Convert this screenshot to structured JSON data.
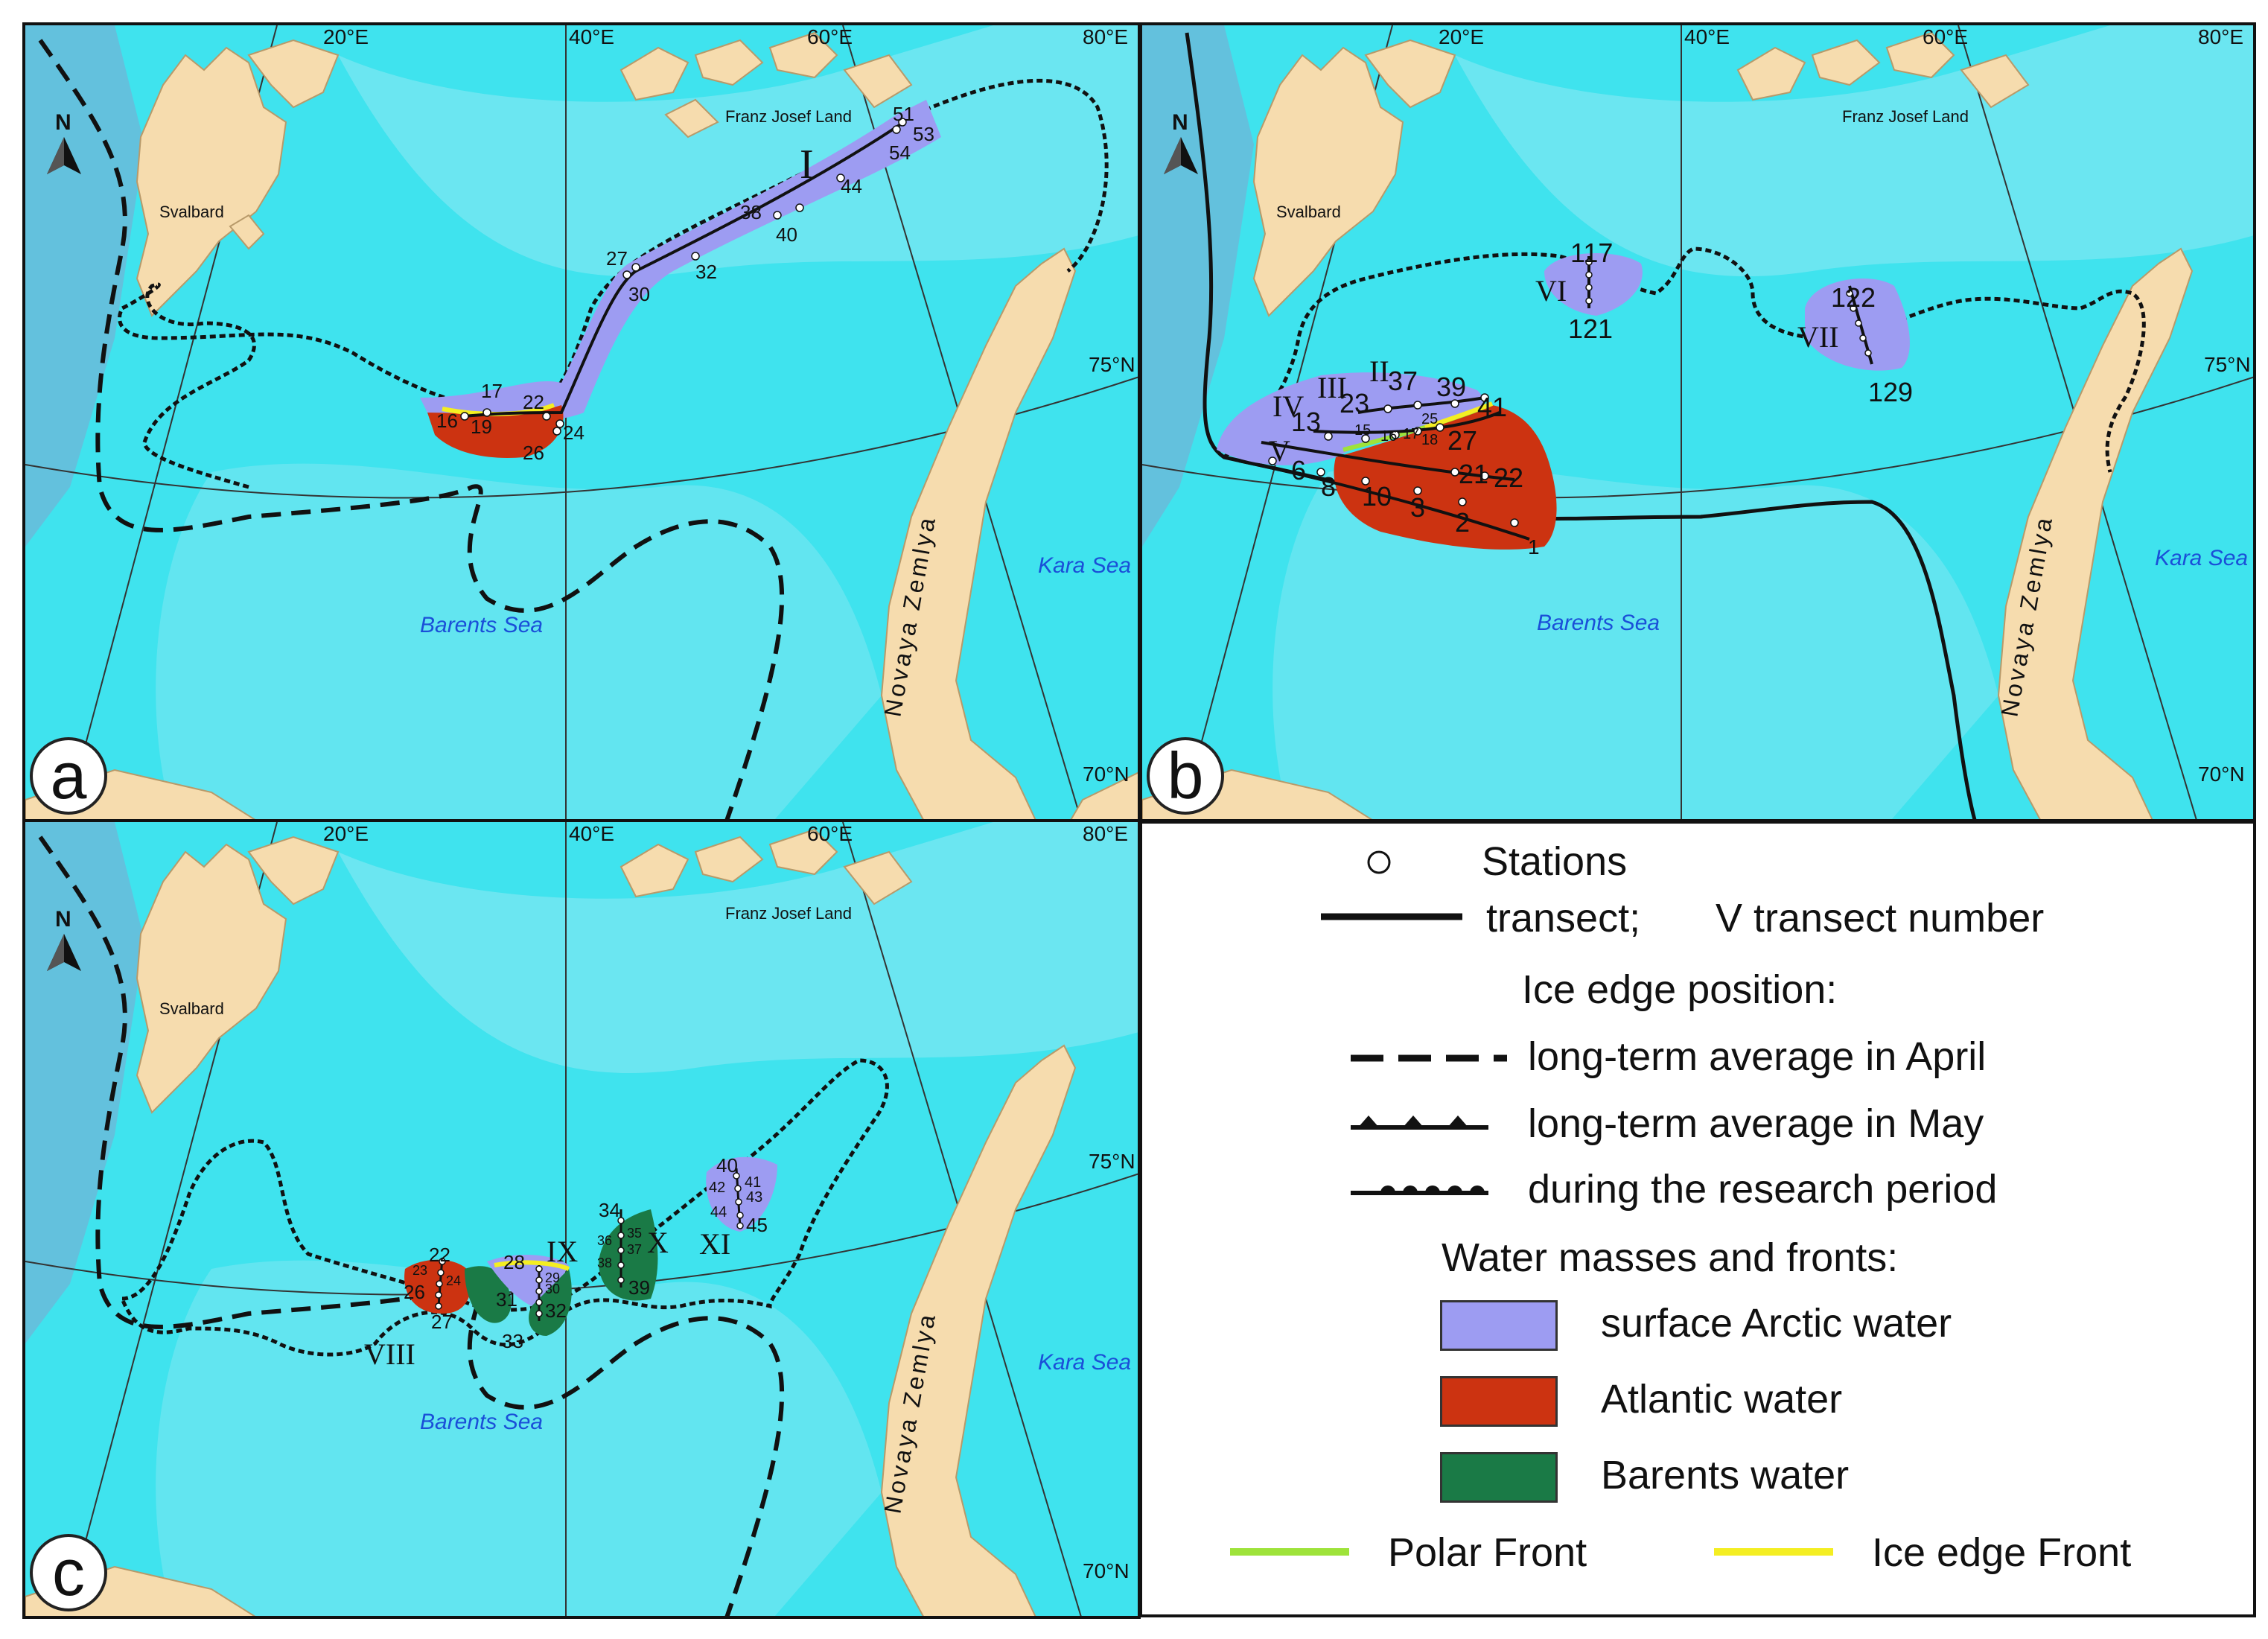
{
  "legend": {
    "stations": "Stations",
    "transect": "transect;",
    "transect_number_example": "V transect number",
    "ice_edge_heading": "Ice edge position:",
    "april": "long-term average in April",
    "may": "long-term average in May",
    "research": "during the research period",
    "water_heading": "Water masses and fronts:",
    "arctic": "surface Arctic water",
    "atlantic": "Atlantic water",
    "barents": "Barents water",
    "polar_front": "Polar Front",
    "ice_front": "Ice edge Front"
  },
  "colors": {
    "sea": "#3fe3ee",
    "shelf": "#7fe7f2",
    "deep": "#6db8d8",
    "land": "#f6dcae",
    "arctic": "#9d9cf2",
    "atlantic": "#cc3311",
    "barents": "#1a7a46",
    "polar_front": "#9ee33a",
    "ice_front": "#f4ee22"
  },
  "map_labels": {
    "lon": [
      "20°E",
      "40°E",
      "60°E",
      "80°E"
    ],
    "lat75": "75°N",
    "lat70": "70°N",
    "svalbard": "Svalbard",
    "fjl": "Franz Josef Land",
    "barents_sea": "Barents Sea",
    "kara_sea": "Kara Sea",
    "novaya": "Novaya Zemlya",
    "north": "N"
  },
  "panels": {
    "a": {
      "letter": "a",
      "transects": [
        "I"
      ],
      "stations": [
        "16",
        "17",
        "19",
        "22",
        "24",
        "26",
        "27",
        "30",
        "32",
        "38",
        "40",
        "44",
        "51",
        "53",
        "54"
      ]
    },
    "b": {
      "letter": "b",
      "transects": [
        "II",
        "III",
        "IV",
        "V",
        "VI",
        "VII"
      ],
      "stations": [
        "117",
        "121",
        "122",
        "129",
        "37",
        "39",
        "41",
        "23",
        "13",
        "25",
        "27",
        "15",
        "16",
        "17",
        "18",
        "6",
        "8",
        "10",
        "3",
        "2",
        "21",
        "22",
        "1"
      ]
    },
    "c": {
      "letter": "c",
      "transects": [
        "VIII",
        "IX",
        "X",
        "XI"
      ],
      "stations": [
        "22",
        "23",
        "24",
        "26",
        "27",
        "28",
        "29",
        "30",
        "31",
        "32",
        "33",
        "34",
        "35",
        "36",
        "37",
        "38",
        "39",
        "40",
        "41",
        "42",
        "43",
        "44",
        "45"
      ]
    }
  }
}
